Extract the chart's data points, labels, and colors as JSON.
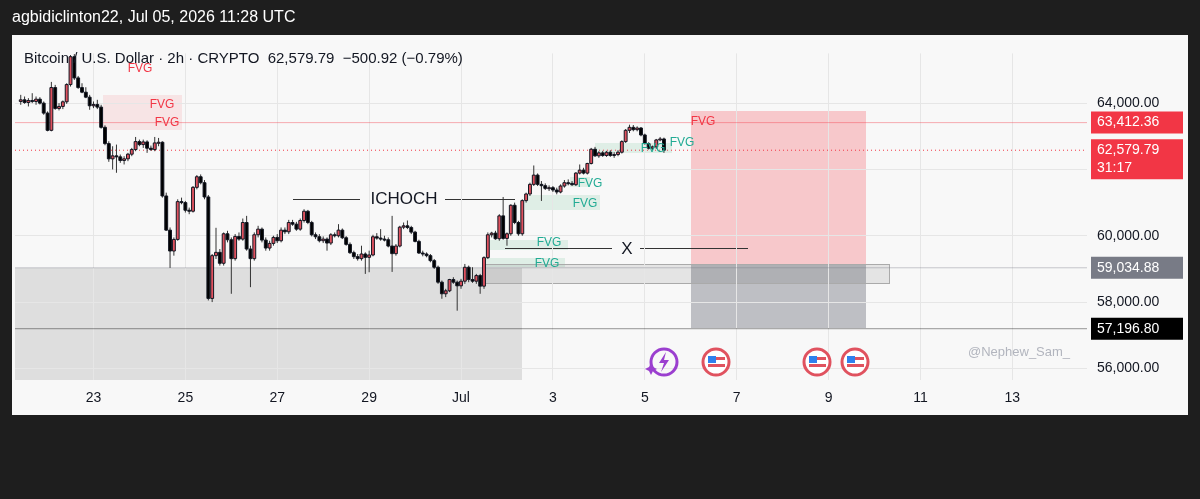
{
  "chart_data": {
    "type": "candlestick",
    "title": "Bitcoin / U.S. Dollar · 2h · CRYPTO  62,579.79  −500.92 (−0.79%)",
    "colors": [
      "#e0525f",
      "#000000",
      "#e0525f",
      "#000000",
      "#e0525f",
      "#000000",
      "#000000",
      "#000000",
      "#e0525f",
      "#000000",
      "#e0525f",
      "#e0525f",
      "#e0525f",
      "#e0525f",
      "#000000",
      "#000000",
      "#000000",
      "#000000",
      "#000000",
      "#e0525f",
      "#000000",
      "#000000",
      "#000000",
      "#000000",
      "#e0525f",
      "#000000",
      "#000000",
      "#e0525f",
      "#e0525f",
      "#e0525f",
      "#e0525f",
      "#000000",
      "#e0525f",
      "#000000",
      "#000000",
      "#e0525f",
      "#e0525f",
      "#000000",
      "#000000",
      "#000000",
      "#e0525f",
      "#e0525f",
      "#000000",
      "#000000",
      "#000000",
      "#e0525f",
      "#e0525f",
      "#000000",
      "#000000",
      "#000000",
      "#e0525f",
      "#e0525f",
      "#000000",
      "#e0525f",
      "#000000",
      "#000000",
      "#e0525f",
      "#000000",
      "#e0525f",
      "#000000",
      "#000000",
      "#e0525f",
      "#e0525f",
      "#000000",
      "#000000",
      "#e0525f",
      "#e0525f",
      "#000000",
      "#e0525f",
      "#000000",
      "#e0525f",
      "#000000",
      "#000000",
      "#e0525f",
      "#e0525f",
      "#000000",
      "#000000",
      "#000000",
      "#000000",
      "#e0525f",
      "#000000",
      "#e0525f",
      "#000000",
      "#e0525f",
      "#000000",
      "#000000",
      "#000000",
      "#000000",
      "#000000",
      "#e0525f",
      "#000000",
      "#e0525f",
      "#e0525f",
      "#000000",
      "#000000",
      "#000000",
      "#000000",
      "#000000",
      "#e0525f",
      "#e0525f",
      "#e0525f",
      "#000000",
      "#000000",
      "#000000",
      "#000000",
      "#000000",
      "#000000",
      "#000000",
      "#000000",
      "#000000",
      "#000000",
      "#e0525f",
      "#e0525f",
      "#000000",
      "#000000",
      "#e0525f",
      "#e0525f",
      "#000000",
      "#000000",
      "#e0525f",
      "#000000",
      "#e0525f",
      "#e0525f",
      "#e0525f",
      "#000000",
      "#e0525f",
      "#000000",
      "#e0525f",
      "#e0525f",
      "#000000",
      "#000000",
      "#e0525f",
      "#e0525f",
      "#e0525f",
      "#e0525f",
      "#000000",
      "#000000",
      "#000000",
      "#e0525f",
      "#000000",
      "#000000",
      "#e0525f",
      "#e0525f",
      "#000000",
      "#000000",
      "#e0525f",
      "#e0525f",
      "#000000",
      "#e0525f",
      "#e0525f",
      "#000000",
      "#e0525f",
      "#000000",
      "#e0525f",
      "#000000",
      "#e0525f",
      "#e0525f",
      "#e0525f",
      "#e0525f",
      "#e0525f",
      "#000000",
      "#e0525f",
      "#000000",
      "#000000",
      "#000000",
      "#e0525f",
      "#e0525f",
      "#e0525f",
      "#000000"
    ],
    "x": [
      "2026-06-21T10:00",
      "2026-06-21T12:00",
      "2026-06-21T14:00",
      "2026-06-21T16:00",
      "2026-06-21T18:00",
      "2026-06-21T20:00",
      "2026-06-21T22:00",
      "2026-06-22T00:00",
      "2026-06-22T02:00",
      "2026-06-22T04:00",
      "2026-06-22T06:00",
      "2026-06-22T08:00",
      "2026-06-22T10:00",
      "2026-06-22T12:00",
      "2026-06-22T14:00",
      "2026-06-22T16:00",
      "2026-06-22T18:00",
      "2026-06-22T20:00",
      "2026-06-22T22:00",
      "2026-06-23T00:00",
      "2026-06-23T02:00",
      "2026-06-23T04:00",
      "2026-06-23T06:00",
      "2026-06-23T08:00",
      "2026-06-23T10:00",
      "2026-06-23T12:00",
      "2026-06-23T14:00",
      "2026-06-23T16:00",
      "2026-06-23T18:00",
      "2026-06-23T20:00",
      "2026-06-23T22:00",
      "2026-06-24T00:00",
      "2026-06-24T02:00",
      "2026-06-24T04:00",
      "2026-06-24T06:00",
      "2026-06-24T08:00",
      "2026-06-24T10:00",
      "2026-06-24T12:00",
      "2026-06-24T14:00",
      "2026-06-24T16:00",
      "2026-06-24T18:00",
      "2026-06-24T20:00",
      "2026-06-24T22:00",
      "2026-06-25T00:00",
      "2026-06-25T02:00",
      "2026-06-25T04:00",
      "2026-06-25T06:00",
      "2026-06-25T08:00",
      "2026-06-25T10:00",
      "2026-06-25T12:00",
      "2026-06-25T14:00",
      "2026-06-25T16:00",
      "2026-06-25T18:00",
      "2026-06-25T20:00",
      "2026-06-25T22:00",
      "2026-06-26T00:00",
      "2026-06-26T02:00",
      "2026-06-26T04:00",
      "2026-06-26T06:00",
      "2026-06-26T08:00",
      "2026-06-26T10:00",
      "2026-06-26T12:00",
      "2026-06-26T14:00",
      "2026-06-26T16:00",
      "2026-06-26T18:00",
      "2026-06-26T20:00",
      "2026-06-26T22:00",
      "2026-06-27T00:00",
      "2026-06-27T02:00",
      "2026-06-27T04:00",
      "2026-06-27T06:00",
      "2026-06-27T08:00",
      "2026-06-27T10:00",
      "2026-06-27T12:00",
      "2026-06-27T14:00",
      "2026-06-27T16:00",
      "2026-06-27T18:00",
      "2026-06-27T20:00",
      "2026-06-27T22:00",
      "2026-06-28T00:00",
      "2026-06-28T02:00",
      "2026-06-28T04:00",
      "2026-06-28T06:00",
      "2026-06-28T08:00",
      "2026-06-28T10:00",
      "2026-06-28T12:00",
      "2026-06-28T14:00",
      "2026-06-28T16:00",
      "2026-06-28T18:00",
      "2026-06-28T20:00",
      "2026-06-28T22:00",
      "2026-06-29T00:00",
      "2026-06-29T02:00",
      "2026-06-29T04:00",
      "2026-06-29T06:00",
      "2026-06-29T08:00",
      "2026-06-29T10:00",
      "2026-06-29T12:00",
      "2026-06-29T14:00",
      "2026-06-29T16:00",
      "2026-06-29T18:00",
      "2026-06-29T20:00",
      "2026-06-29T22:00",
      "2026-06-30T00:00",
      "2026-06-30T02:00",
      "2026-06-30T04:00",
      "2026-06-30T06:00",
      "2026-06-30T08:00",
      "2026-06-30T10:00",
      "2026-06-30T12:00",
      "2026-06-30T14:00",
      "2026-06-30T16:00",
      "2026-06-30T18:00",
      "2026-06-30T20:00",
      "2026-06-30T22:00",
      "2026-07-01T00:00",
      "2026-07-01T02:00",
      "2026-07-01T04:00",
      "2026-07-01T06:00",
      "2026-07-01T08:00",
      "2026-07-01T10:00",
      "2026-07-01T12:00",
      "2026-07-01T14:00",
      "2026-07-01T16:00",
      "2026-07-01T18:00",
      "2026-07-01T20:00",
      "2026-07-01T22:00",
      "2026-07-02T00:00",
      "2026-07-02T02:00",
      "2026-07-02T04:00",
      "2026-07-02T06:00",
      "2026-07-02T08:00",
      "2026-07-02T10:00",
      "2026-07-02T12:00",
      "2026-07-02T14:00",
      "2026-07-02T16:00",
      "2026-07-02T18:00",
      "2026-07-02T20:00",
      "2026-07-02T22:00",
      "2026-07-03T00:00",
      "2026-07-03T02:00",
      "2026-07-03T04:00",
      "2026-07-03T06:00",
      "2026-07-03T08:00",
      "2026-07-03T10:00",
      "2026-07-03T12:00",
      "2026-07-03T14:00",
      "2026-07-03T16:00",
      "2026-07-03T18:00",
      "2026-07-03T20:00",
      "2026-07-03T22:00",
      "2026-07-04T00:00",
      "2026-07-04T02:00",
      "2026-07-04T04:00",
      "2026-07-04T06:00",
      "2026-07-04T08:00",
      "2026-07-04T10:00",
      "2026-07-04T12:00",
      "2026-07-04T14:00",
      "2026-07-04T16:00",
      "2026-07-04T18:00",
      "2026-07-04T20:00",
      "2026-07-04T22:00",
      "2026-07-05T00:00",
      "2026-07-05T02:00",
      "2026-07-05T04:00",
      "2026-07-05T06:00",
      "2026-07-05T08:00",
      "2026-07-05T10:00"
    ],
    "ohlc": [
      [
        64050,
        64250,
        63950,
        64100
      ],
      [
        64100,
        64200,
        63980,
        64020
      ],
      [
        64020,
        64150,
        63900,
        64080
      ],
      [
        64080,
        64300,
        64000,
        64050
      ],
      [
        64050,
        64200,
        63950,
        64120
      ],
      [
        64120,
        64180,
        63960,
        64000
      ],
      [
        64000,
        64050,
        63650,
        63700
      ],
      [
        63700,
        63750,
        63150,
        63180
      ],
      [
        63180,
        64640,
        63150,
        64470
      ],
      [
        64470,
        64550,
        63800,
        63840
      ],
      [
        63840,
        64000,
        63780,
        63900
      ],
      [
        63900,
        64080,
        63820,
        64040
      ],
      [
        64040,
        64600,
        63980,
        64560
      ],
      [
        64560,
        65450,
        64500,
        65400
      ],
      [
        65400,
        65480,
        64700,
        64760
      ],
      [
        64760,
        64820,
        64430,
        64470
      ],
      [
        64470,
        64600,
        64300,
        64330
      ],
      [
        64330,
        64480,
        64150,
        64180
      ],
      [
        64180,
        64250,
        63800,
        63920
      ],
      [
        63920,
        64050,
        63850,
        63960
      ],
      [
        63960,
        64100,
        63820,
        63880
      ],
      [
        63880,
        63950,
        63230,
        63270
      ],
      [
        63270,
        63330,
        62730,
        62780
      ],
      [
        62780,
        62850,
        62230,
        62320
      ],
      [
        62320,
        62700,
        62000,
        62410
      ],
      [
        62410,
        62750,
        61900,
        62380
      ],
      [
        62380,
        62450,
        62200,
        62270
      ],
      [
        62270,
        62400,
        62150,
        62320
      ],
      [
        62320,
        62500,
        62250,
        62460
      ],
      [
        62460,
        62650,
        62400,
        62600
      ],
      [
        62600,
        62980,
        62550,
        62840
      ],
      [
        62840,
        62900,
        62700,
        62750
      ],
      [
        62750,
        62900,
        62650,
        62830
      ],
      [
        62830,
        62880,
        62500,
        62640
      ],
      [
        62640,
        62720,
        62560,
        62600
      ],
      [
        62600,
        62980,
        62550,
        62800
      ],
      [
        62800,
        62950,
        62700,
        62820
      ],
      [
        62820,
        62850,
        61150,
        61200
      ],
      [
        61200,
        61300,
        60150,
        60170
      ],
      [
        60170,
        60250,
        59030,
        59540
      ],
      [
        59540,
        59950,
        59400,
        59890
      ],
      [
        59890,
        61100,
        59850,
        61030
      ],
      [
        61030,
        61150,
        60950,
        61000
      ],
      [
        61000,
        61050,
        60700,
        60770
      ],
      [
        60770,
        60850,
        60650,
        60740
      ],
      [
        60740,
        61500,
        60700,
        61460
      ],
      [
        61460,
        61830,
        61400,
        61780
      ],
      [
        61780,
        61850,
        61550,
        61600
      ],
      [
        61600,
        61680,
        61100,
        61170
      ],
      [
        61170,
        61230,
        58050,
        58110
      ],
      [
        58110,
        59450,
        58000,
        59400
      ],
      [
        59400,
        60240,
        59300,
        59500
      ],
      [
        59500,
        59600,
        59100,
        59170
      ],
      [
        59170,
        60100,
        59100,
        60060
      ],
      [
        60060,
        60150,
        59800,
        59880
      ],
      [
        59880,
        59950,
        58250,
        59310
      ],
      [
        59310,
        60050,
        59250,
        59980
      ],
      [
        59980,
        60100,
        59850,
        59900
      ],
      [
        59900,
        60520,
        59850,
        60400
      ],
      [
        60400,
        60600,
        59550,
        59600
      ],
      [
        59600,
        59700,
        58450,
        59310
      ],
      [
        59310,
        60100,
        59250,
        60030
      ],
      [
        60030,
        60300,
        59950,
        60200
      ],
      [
        60200,
        60250,
        59800,
        59870
      ],
      [
        59870,
        59950,
        59550,
        59630
      ],
      [
        59630,
        59850,
        59550,
        59770
      ],
      [
        59770,
        60000,
        59700,
        59950
      ],
      [
        59950,
        60050,
        59780,
        59850
      ],
      [
        59850,
        60250,
        59800,
        60170
      ],
      [
        60170,
        60250,
        60050,
        60120
      ],
      [
        60120,
        60480,
        60050,
        60400
      ],
      [
        60400,
        60480,
        60300,
        60350
      ],
      [
        60350,
        60420,
        60150,
        60200
      ],
      [
        60200,
        60520,
        60150,
        60460
      ],
      [
        60460,
        60800,
        60400,
        60740
      ],
      [
        60740,
        60780,
        60350,
        60400
      ],
      [
        60400,
        60450,
        59980,
        60030
      ],
      [
        60030,
        60100,
        59900,
        59970
      ],
      [
        59970,
        60050,
        59800,
        59850
      ],
      [
        59850,
        59980,
        59780,
        59900
      ],
      [
        59900,
        59950,
        59550,
        59780
      ],
      [
        59780,
        60080,
        59720,
        60030
      ],
      [
        60030,
        60100,
        59950,
        60000
      ],
      [
        60000,
        60350,
        59950,
        60170
      ],
      [
        60170,
        60220,
        59900,
        59940
      ],
      [
        59940,
        59990,
        59700,
        59740
      ],
      [
        59740,
        59800,
        59450,
        59490
      ],
      [
        59490,
        59550,
        59300,
        59370
      ],
      [
        59370,
        59450,
        59250,
        59310
      ],
      [
        59310,
        59700,
        59250,
        59450
      ],
      [
        59450,
        59500,
        58850,
        59350
      ],
      [
        59350,
        59550,
        58900,
        59420
      ],
      [
        59420,
        60030,
        59380,
        59970
      ],
      [
        59970,
        60080,
        59880,
        59930
      ],
      [
        59930,
        60200,
        59850,
        59900
      ],
      [
        59900,
        60000,
        59830,
        59880
      ],
      [
        59880,
        59950,
        59650,
        59690
      ],
      [
        59690,
        60600,
        58910,
        59460
      ],
      [
        59460,
        59750,
        59400,
        59690
      ],
      [
        59690,
        60300,
        59650,
        60260
      ],
      [
        60260,
        60400,
        60200,
        60300
      ],
      [
        60300,
        60460,
        60200,
        60250
      ],
      [
        60250,
        60300,
        60050,
        60110
      ],
      [
        60110,
        60150,
        59800,
        59830
      ],
      [
        59830,
        59880,
        59450,
        59480
      ],
      [
        59480,
        59550,
        59380,
        59450
      ],
      [
        59450,
        59500,
        59350,
        59400
      ],
      [
        59400,
        59450,
        59200,
        59250
      ],
      [
        59250,
        59300,
        59000,
        59050
      ],
      [
        59050,
        59100,
        58550,
        58600
      ],
      [
        58600,
        58650,
        58100,
        58250
      ],
      [
        58250,
        58400,
        58150,
        58340
      ],
      [
        58340,
        58700,
        58300,
        58680
      ],
      [
        58680,
        58750,
        58550,
        58600
      ],
      [
        58600,
        58650,
        57740,
        58490
      ],
      [
        58490,
        58700,
        58400,
        58630
      ],
      [
        58630,
        59150,
        58550,
        59050
      ],
      [
        59050,
        59100,
        58600,
        58680
      ],
      [
        58680,
        59050,
        58580,
        58630
      ],
      [
        58630,
        58850,
        58550,
        58800
      ],
      [
        58800,
        58850,
        58250,
        58480
      ],
      [
        58480,
        59380,
        58400,
        59340
      ],
      [
        59340,
        60100,
        59300,
        60030
      ],
      [
        60030,
        60120,
        59950,
        60080
      ],
      [
        60080,
        60150,
        59880,
        59910
      ],
      [
        59910,
        60650,
        59850,
        60600
      ],
      [
        60600,
        61170,
        59880,
        59920
      ],
      [
        59920,
        60100,
        59700,
        60060
      ],
      [
        60060,
        60950,
        60000,
        60920
      ],
      [
        60920,
        61000,
        60350,
        60400
      ],
      [
        60400,
        60450,
        60000,
        60060
      ],
      [
        60060,
        61100,
        60000,
        61060
      ],
      [
        61060,
        61300,
        61000,
        61260
      ],
      [
        61260,
        61600,
        61200,
        61550
      ],
      [
        61550,
        62120,
        61500,
        61830
      ],
      [
        61830,
        61880,
        61500,
        61550
      ],
      [
        61550,
        61650,
        61050,
        61510
      ],
      [
        61510,
        61580,
        61380,
        61430
      ],
      [
        61430,
        61520,
        61350,
        61450
      ],
      [
        61450,
        61500,
        61320,
        61380
      ],
      [
        61380,
        61450,
        61250,
        61320
      ],
      [
        61320,
        61550,
        61280,
        61500
      ],
      [
        61500,
        61680,
        61450,
        61600
      ],
      [
        61600,
        61700,
        61520,
        61580
      ],
      [
        61580,
        61650,
        61500,
        61540
      ],
      [
        61540,
        61920,
        61500,
        61890
      ],
      [
        61890,
        62150,
        61850,
        61980
      ],
      [
        61980,
        62050,
        61850,
        61890
      ],
      [
        61890,
        62200,
        61850,
        62180
      ],
      [
        62180,
        62650,
        62150,
        62610
      ],
      [
        62610,
        62680,
        62380,
        62410
      ],
      [
        62410,
        62550,
        62350,
        62500
      ],
      [
        62500,
        62560,
        62380,
        62420
      ],
      [
        62420,
        62560,
        62380,
        62520
      ],
      [
        62520,
        62580,
        62380,
        62420
      ],
      [
        62420,
        62520,
        62350,
        62450
      ],
      [
        62450,
        62580,
        62400,
        62520
      ],
      [
        62520,
        62880,
        62480,
        62840
      ],
      [
        62840,
        63220,
        62800,
        63180
      ],
      [
        63180,
        63350,
        63100,
        63270
      ],
      [
        63270,
        63340,
        63150,
        63200
      ],
      [
        63200,
        63300,
        63150,
        63250
      ],
      [
        63250,
        63280,
        63000,
        63040
      ],
      [
        63040,
        63080,
        62750,
        62780
      ],
      [
        62780,
        62820,
        62600,
        62640
      ],
      [
        62640,
        62720,
        62580,
        62680
      ],
      [
        62680,
        62920,
        62620,
        62890
      ],
      [
        62890,
        62980,
        62850,
        62920
      ],
      [
        62920,
        62960,
        62500,
        62579.79
      ]
    ],
    "xlim": [
      "2026-06-21T07:00",
      "2026-07-14T15:00"
    ],
    "xticks": [
      {
        "value": "2026-06-23",
        "label": "23"
      },
      {
        "value": "2026-06-25",
        "label": "25"
      },
      {
        "value": "2026-06-27",
        "label": "27"
      },
      {
        "value": "2026-06-29",
        "label": "29"
      },
      {
        "value": "2026-07-01",
        "label": "Jul"
      },
      {
        "value": "2026-07-03",
        "label": "3"
      },
      {
        "value": "2026-07-05",
        "label": "5"
      },
      {
        "value": "2026-07-07",
        "label": "7"
      },
      {
        "value": "2026-07-09",
        "label": "9"
      },
      {
        "value": "2026-07-11",
        "label": "11"
      },
      {
        "value": "2026-07-13",
        "label": "13"
      }
    ],
    "ylim": [
      55650,
      65500
    ],
    "yticks": [
      {
        "value": 56000,
        "label": "56,000.00"
      },
      {
        "value": 58000,
        "label": "58,000.00"
      },
      {
        "value": 60000,
        "label": "60,000.00"
      },
      {
        "value": 62000,
        "label": null
      },
      {
        "value": 64000,
        "label": "64,000.00"
      }
    ],
    "grid": true,
    "ref_lines": [
      {
        "axis": "y",
        "value": 63412.36,
        "label": "63,412.36",
        "color": "#f23645"
      },
      {
        "axis": "y",
        "value": 62579.79,
        "label": "62,579.79\n31:17",
        "color": "#f23645",
        "line_style": "dotted"
      },
      {
        "axis": "y",
        "value": 59034.88,
        "label": "59,034.88",
        "color": "#787b86"
      },
      {
        "axis": "y",
        "value": 57196.8,
        "label": "57,196.80",
        "color": "#000000"
      }
    ],
    "annotations": [
      "agbidiclinton22, Jul 05, 2026 11:28 UTC",
      "FVG",
      "FVG",
      "FVG",
      "ICHOCH",
      "FVG",
      "FVG",
      "FVG",
      "FVG",
      "X",
      "FVG",
      "FVG",
      "FVG",
      "@Nephew_Sam_"
    ]
  }
}
